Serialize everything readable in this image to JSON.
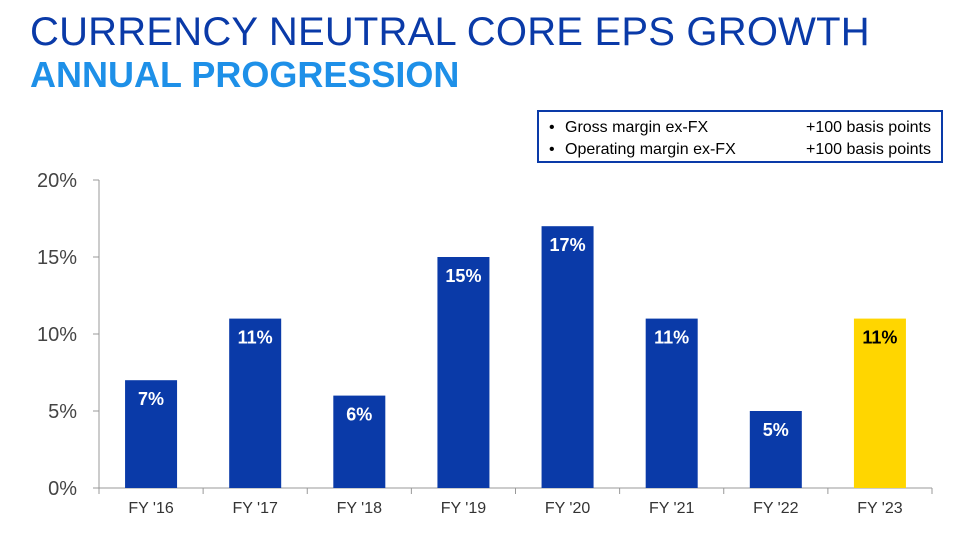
{
  "title": {
    "line1": "CURRENCY NEUTRAL CORE EPS GROWTH",
    "line2": "ANNUAL PROGRESSION"
  },
  "notes": [
    {
      "bullet": "•",
      "label": "Gross margin ex-FX",
      "value": "+100 basis points"
    },
    {
      "bullet": "•",
      "label": "Operating margin ex-FX",
      "value": "+100 basis points"
    }
  ],
  "colors": {
    "bar": "#0a3aa8",
    "highlight": "#ffd600",
    "title": "#0a3aa8",
    "subtitle": "#1e90e8"
  },
  "chart_data": {
    "type": "bar",
    "categories": [
      "FY '16",
      "FY '17",
      "FY '18",
      "FY '19",
      "FY '20",
      "FY '21",
      "FY '22",
      "FY '23"
    ],
    "values": [
      7,
      11,
      6,
      15,
      17,
      11,
      5,
      11
    ],
    "data_labels": [
      "7%",
      "11%",
      "6%",
      "15%",
      "17%",
      "11%",
      "5%",
      "11%"
    ],
    "highlighted": [
      false,
      false,
      false,
      false,
      false,
      false,
      false,
      true
    ],
    "ylim": [
      0,
      20
    ],
    "yticks": [
      0,
      5,
      10,
      15,
      20
    ],
    "ytick_labels": [
      "0%",
      "5%",
      "10%",
      "15%",
      "20%"
    ],
    "xlabel": "",
    "ylabel": "",
    "grid": false
  }
}
